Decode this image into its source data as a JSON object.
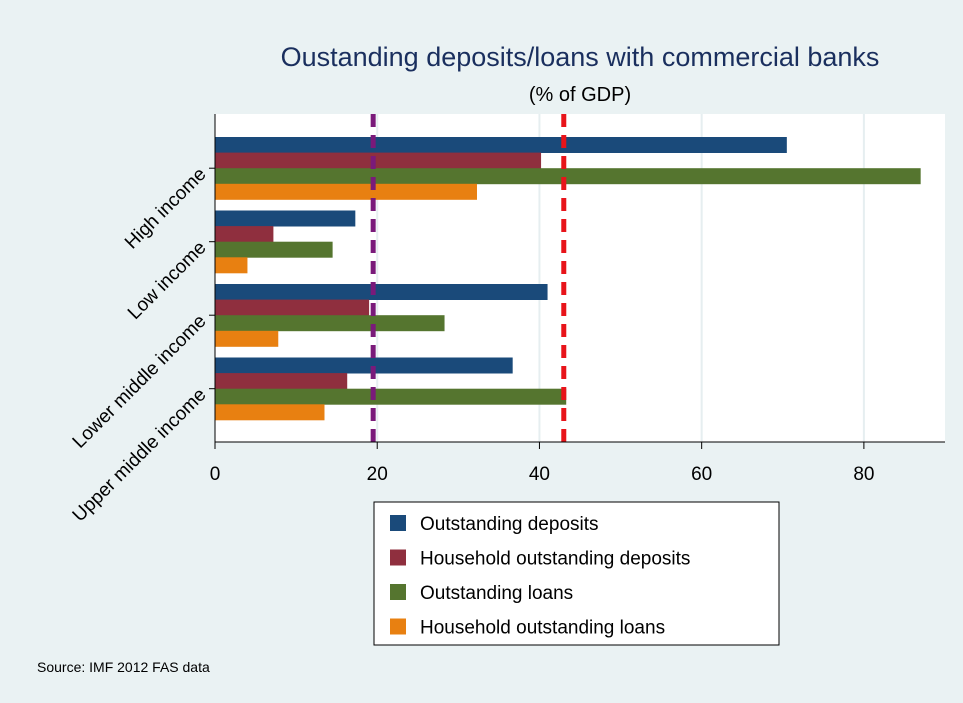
{
  "chart_data": {
    "type": "bar",
    "orientation": "horizontal",
    "title": "Oustanding deposits/loans with commercial banks",
    "subtitle": "(% of GDP)",
    "categories": [
      "High income",
      "Low income",
      "Lower middle income",
      "Upper middle income"
    ],
    "series": [
      {
        "name": "Outstanding deposits",
        "color": "#1a4a7a",
        "values": [
          70.5,
          17.3,
          41.0,
          36.7
        ]
      },
      {
        "name": "Household outstanding deposits",
        "color": "#8f2f3e",
        "values": [
          40.2,
          7.2,
          19.0,
          16.3
        ]
      },
      {
        "name": "Outstanding loans",
        "color": "#55752f",
        "values": [
          87.0,
          14.5,
          28.3,
          43.3
        ]
      },
      {
        "name": "Household outstanding loans",
        "color": "#e88011",
        "values": [
          32.3,
          4.0,
          7.8,
          13.5
        ]
      }
    ],
    "xlim": [
      0,
      90
    ],
    "xticks": [
      0,
      20,
      40,
      60,
      80
    ],
    "reference_lines": [
      {
        "value": 19.5,
        "color": "#7a1a7a",
        "style": "dashed"
      },
      {
        "value": 43.0,
        "color": "#e8141a",
        "style": "dashed"
      }
    ],
    "grid": true,
    "legend_position": "bottom",
    "note": "Source: IMF 2012 FAS data"
  },
  "colors": {
    "background": "#eaf2f3",
    "plot_background": "#ffffff",
    "gridline": "#e6eef0"
  }
}
